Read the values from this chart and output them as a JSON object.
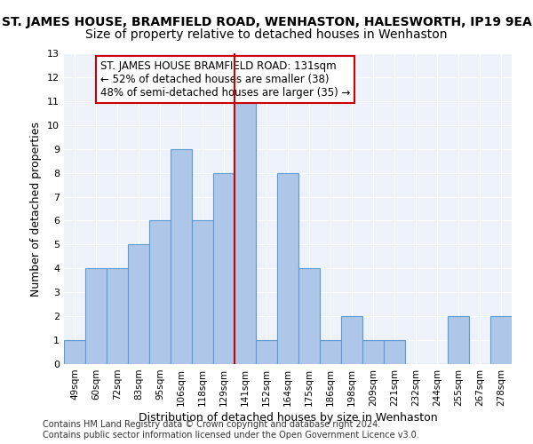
{
  "title": "ST. JAMES HOUSE, BRAMFIELD ROAD, WENHASTON, HALESWORTH, IP19 9EA",
  "subtitle": "Size of property relative to detached houses in Wenhaston",
  "xlabel": "Distribution of detached houses by size in Wenhaston",
  "ylabel": "Number of detached properties",
  "categories": [
    "49sqm",
    "60sqm",
    "72sqm",
    "83sqm",
    "95sqm",
    "106sqm",
    "118sqm",
    "129sqm",
    "141sqm",
    "152sqm",
    "164sqm",
    "175sqm",
    "186sqm",
    "198sqm",
    "209sqm",
    "221sqm",
    "232sqm",
    "244sqm",
    "255sqm",
    "267sqm",
    "278sqm"
  ],
  "values": [
    1,
    4,
    4,
    5,
    6,
    9,
    6,
    8,
    11,
    1,
    8,
    4,
    1,
    2,
    1,
    1,
    0,
    0,
    2,
    0,
    2
  ],
  "bar_color": "#aec6e8",
  "bar_edge_color": "#5b9bd5",
  "vline_x": 7.5,
  "vline_color": "#cc0000",
  "annotation_line1": "ST. JAMES HOUSE BRAMFIELD ROAD: 131sqm",
  "annotation_line2": "← 52% of detached houses are smaller (38)",
  "annotation_line3": "48% of semi-detached houses are larger (35) →",
  "annotation_box_edgecolor": "#cc0000",
  "annotation_fontsize": 8.5,
  "ylim": [
    0,
    13
  ],
  "yticks": [
    0,
    1,
    2,
    3,
    4,
    5,
    6,
    7,
    8,
    9,
    10,
    11,
    12,
    13
  ],
  "footer": "Contains HM Land Registry data © Crown copyright and database right 2024.\nContains public sector information licensed under the Open Government Licence v3.0.",
  "title_fontsize": 10,
  "subtitle_fontsize": 10,
  "xlabel_fontsize": 9,
  "ylabel_fontsize": 9,
  "footer_fontsize": 7,
  "background_color": "#eef3fb",
  "grid_color": "#ffffff"
}
